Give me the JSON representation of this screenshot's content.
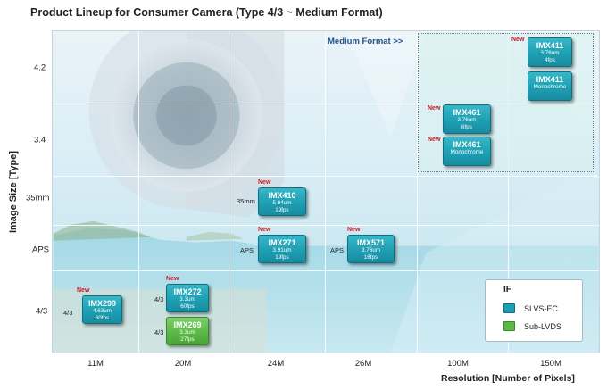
{
  "title": "Product Lineup for Consumer Camera (Type 4/3 ~ Medium Format)",
  "colors": {
    "slvs_ec": "#1e9fb3",
    "sub_lvds": "#5cb848",
    "new_label": "#c81e28",
    "medium_format_label": "#1f4f8a"
  },
  "chart_data": {
    "type": "scatter",
    "title": "Product Lineup for Consumer Camera (Type 4/3 ~ Medium Format)",
    "xlabel": "Resolution  [Number of Pixels]",
    "ylabel": "Image Size [Type]",
    "x_categories": [
      "11M",
      "20M",
      "24M",
      "26M",
      "100M",
      "150M"
    ],
    "y_categories": [
      "4/3",
      "APS",
      "35mm",
      "3.4",
      "4.2"
    ],
    "region": {
      "label": "Medium Format >>",
      "x": [
        "100M",
        "150M"
      ],
      "y": [
        "3.4",
        "4.2"
      ]
    },
    "legend": {
      "title": "IF",
      "position": "bottom-right",
      "entries": [
        {
          "label": "SLVS-EC",
          "color": "#1e9fb3"
        },
        {
          "label": "Sub-LVDS",
          "color": "#5cb848"
        }
      ]
    },
    "products": [
      {
        "id": "imx299",
        "name": "IMX299",
        "specs": [
          "4.63um",
          "60fps"
        ],
        "x": "11M",
        "y": "4/3",
        "size_label": "4/3",
        "new": true,
        "interface": "SLVS-EC"
      },
      {
        "id": "imx272",
        "name": "IMX272",
        "specs": [
          "3.3um",
          "60fps"
        ],
        "x": "20M",
        "y": "4/3",
        "size_label": "4/3",
        "new": true,
        "interface": "SLVS-EC"
      },
      {
        "id": "imx269",
        "name": "IMX269",
        "specs": [
          "3.3um",
          "27fps"
        ],
        "x": "20M",
        "y": "4/3",
        "size_label": "4/3",
        "new": false,
        "interface": "Sub-LVDS"
      },
      {
        "id": "imx410",
        "name": "IMX410",
        "specs": [
          "5.94um",
          "19fps"
        ],
        "x": "24M",
        "y": "35mm",
        "size_label": "35mm",
        "new": true,
        "interface": "SLVS-EC"
      },
      {
        "id": "imx271",
        "name": "IMX271",
        "specs": [
          "3.91um",
          "19fps"
        ],
        "x": "24M",
        "y": "APS",
        "size_label": "APS",
        "new": true,
        "interface": "SLVS-EC"
      },
      {
        "id": "imx571",
        "name": "IMX571",
        "specs": [
          "3.76um",
          "16fps"
        ],
        "x": "26M",
        "y": "APS",
        "size_label": "APS",
        "new": true,
        "interface": "SLVS-EC"
      },
      {
        "id": "imx461",
        "name": "IMX461",
        "specs": [
          "3.76um",
          "6fps"
        ],
        "x": "100M",
        "y": "3.4",
        "size_label": "",
        "new": true,
        "interface": "SLVS-EC"
      },
      {
        "id": "imx461m",
        "name": "IMX461",
        "specs": [
          "Monochrome"
        ],
        "x": "100M",
        "y": "3.4",
        "size_label": "",
        "new": true,
        "interface": "SLVS-EC"
      },
      {
        "id": "imx411",
        "name": "IMX411",
        "specs": [
          "3.76um",
          "4fps"
        ],
        "x": "150M",
        "y": "4.2",
        "size_label": "",
        "new": true,
        "interface": "SLVS-EC"
      },
      {
        "id": "imx411m",
        "name": "IMX411",
        "specs": [
          "Monochrome"
        ],
        "x": "150M",
        "y": "4.2",
        "size_label": "",
        "new": false,
        "interface": "SLVS-EC"
      }
    ],
    "new_text": "New"
  }
}
